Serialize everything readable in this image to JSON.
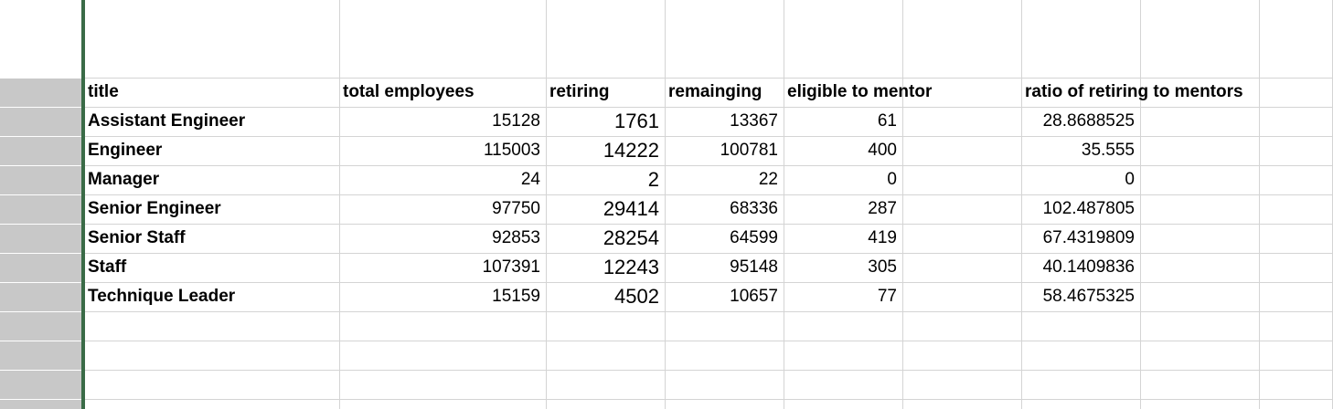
{
  "columns": [
    "title",
    "total employees",
    "retiring",
    "remainging",
    "eligible to mentor",
    "",
    "ratio of retiring to mentors",
    "",
    ""
  ],
  "rows": [
    {
      "title": "Assistant Engineer",
      "total_employees": "15128",
      "retiring": "1761",
      "remaining": "13367",
      "eligible_to_mentor": "61",
      "ratio": "28.8688525"
    },
    {
      "title": "Engineer",
      "total_employees": "115003",
      "retiring": "14222",
      "remaining": "100781",
      "eligible_to_mentor": "400",
      "ratio": "35.555"
    },
    {
      "title": "Manager",
      "total_employees": "24",
      "retiring": "2",
      "remaining": "22",
      "eligible_to_mentor": "0",
      "ratio": "0"
    },
    {
      "title": "Senior Engineer",
      "total_employees": "97750",
      "retiring": "29414",
      "remaining": "68336",
      "eligible_to_mentor": "287",
      "ratio": "102.487805"
    },
    {
      "title": "Senior Staff",
      "total_employees": "92853",
      "retiring": "28254",
      "remaining": "64599",
      "eligible_to_mentor": "419",
      "ratio": "67.4319809"
    },
    {
      "title": "Staff",
      "total_employees": "107391",
      "retiring": "12243",
      "remaining": "95148",
      "eligible_to_mentor": "305",
      "ratio": "40.1409836"
    },
    {
      "title": "Technique Leader",
      "total_employees": "15159",
      "retiring": "4502",
      "remaining": "10657",
      "eligible_to_mentor": "77",
      "ratio": "58.4675325"
    }
  ],
  "colors": {
    "row_header_bg": "#c8c8c8",
    "selection_bar": "#3a6b47",
    "gridline": "#d4d4d4"
  }
}
